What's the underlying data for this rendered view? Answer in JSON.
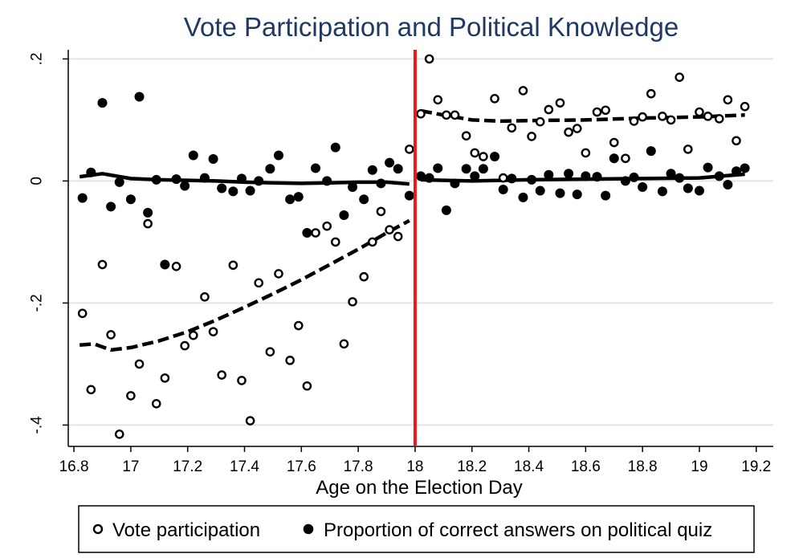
{
  "chart_data": {
    "type": "scatter",
    "title": "Vote Participation and Political Knowledge",
    "xlabel": "Age on the Election Day",
    "ylabel": "",
    "xlim": [
      16.78,
      19.26
    ],
    "ylim": [
      -0.435,
      0.215
    ],
    "grid": true,
    "legend_position": "bottom",
    "cutoff_x": 18,
    "colors": {
      "title": "#1f3864",
      "cutoff": "#e8191c",
      "grid": "#dce8ec",
      "marker": "#000000"
    },
    "x_ticks": [
      {
        "value": 16.8,
        "label": "16.8"
      },
      {
        "value": 17,
        "label": "17"
      },
      {
        "value": 17.2,
        "label": "17.2"
      },
      {
        "value": 17.4,
        "label": "17.4"
      },
      {
        "value": 17.6,
        "label": "17.6"
      },
      {
        "value": 17.8,
        "label": "17.8"
      },
      {
        "value": 18,
        "label": "18"
      },
      {
        "value": 18.2,
        "label": "18.2"
      },
      {
        "value": 18.4,
        "label": "18.4"
      },
      {
        "value": 18.6,
        "label": "18.6"
      },
      {
        "value": 18.8,
        "label": "18.8"
      },
      {
        "value": 19,
        "label": "19"
      },
      {
        "value": 19.2,
        "label": "19.2"
      }
    ],
    "y_ticks": [
      {
        "value": 0.2,
        "label": ".2"
      },
      {
        "value": 0,
        "label": "0"
      },
      {
        "value": -0.2,
        "label": "-.2"
      },
      {
        "value": -0.4,
        "label": "-.4"
      }
    ],
    "series": [
      {
        "name": "Vote participation",
        "marker": "hollow-circle",
        "points": [
          [
            16.83,
            -0.217
          ],
          [
            16.86,
            -0.342
          ],
          [
            16.9,
            -0.137
          ],
          [
            16.93,
            -0.252
          ],
          [
            16.96,
            -0.415
          ],
          [
            17.0,
            -0.352
          ],
          [
            17.03,
            -0.3
          ],
          [
            17.06,
            -0.07
          ],
          [
            17.09,
            -0.365
          ],
          [
            17.12,
            -0.323
          ],
          [
            17.16,
            -0.14
          ],
          [
            17.19,
            -0.27
          ],
          [
            17.22,
            -0.253
          ],
          [
            17.26,
            -0.19
          ],
          [
            17.29,
            -0.247
          ],
          [
            17.32,
            -0.318
          ],
          [
            17.36,
            -0.138
          ],
          [
            17.39,
            -0.327
          ],
          [
            17.42,
            -0.393
          ],
          [
            17.45,
            -0.167
          ],
          [
            17.49,
            -0.28
          ],
          [
            17.52,
            -0.152
          ],
          [
            17.56,
            -0.294
          ],
          [
            17.59,
            -0.237
          ],
          [
            17.62,
            -0.336
          ],
          [
            17.65,
            -0.085
          ],
          [
            17.69,
            -0.074
          ],
          [
            17.72,
            -0.1
          ],
          [
            17.75,
            -0.267
          ],
          [
            17.78,
            -0.198
          ],
          [
            17.82,
            -0.157
          ],
          [
            17.85,
            -0.1
          ],
          [
            17.88,
            -0.05
          ],
          [
            17.91,
            -0.08
          ],
          [
            17.94,
            -0.091
          ],
          [
            17.98,
            0.052
          ],
          [
            18.02,
            0.11
          ],
          [
            18.05,
            0.2
          ],
          [
            18.08,
            0.133
          ],
          [
            18.11,
            0.108
          ],
          [
            18.14,
            0.108
          ],
          [
            18.18,
            0.074
          ],
          [
            18.21,
            0.046
          ],
          [
            18.24,
            0.04
          ],
          [
            18.28,
            0.135
          ],
          [
            18.31,
            0.005
          ],
          [
            18.34,
            0.087
          ],
          [
            18.38,
            0.148
          ],
          [
            18.41,
            0.073
          ],
          [
            18.44,
            0.097
          ],
          [
            18.47,
            0.117
          ],
          [
            18.51,
            0.128
          ],
          [
            18.54,
            0.08
          ],
          [
            18.57,
            0.086
          ],
          [
            18.6,
            0.046
          ],
          [
            18.64,
            0.113
          ],
          [
            18.67,
            0.116
          ],
          [
            18.7,
            0.063
          ],
          [
            18.74,
            0.037
          ],
          [
            18.77,
            0.098
          ],
          [
            18.8,
            0.105
          ],
          [
            18.83,
            0.143
          ],
          [
            18.87,
            0.106
          ],
          [
            18.9,
            0.1
          ],
          [
            18.93,
            0.17
          ],
          [
            18.96,
            0.052
          ],
          [
            19.0,
            0.113
          ],
          [
            19.03,
            0.106
          ],
          [
            19.07,
            0.102
          ],
          [
            19.1,
            0.133
          ],
          [
            19.13,
            0.066
          ],
          [
            19.16,
            0.122
          ]
        ],
        "fit_left": [
          [
            16.82,
            -0.269
          ],
          [
            16.87,
            -0.267
          ],
          [
            16.93,
            -0.277
          ],
          [
            17.0,
            -0.273
          ],
          [
            17.1,
            -0.262
          ],
          [
            17.2,
            -0.247
          ],
          [
            17.3,
            -0.228
          ],
          [
            17.4,
            -0.207
          ],
          [
            17.5,
            -0.185
          ],
          [
            17.6,
            -0.162
          ],
          [
            17.7,
            -0.137
          ],
          [
            17.8,
            -0.112
          ],
          [
            17.9,
            -0.085
          ],
          [
            17.98,
            -0.065
          ]
        ],
        "fit_right": [
          [
            18.02,
            0.115
          ],
          [
            18.1,
            0.108
          ],
          [
            18.2,
            0.1
          ],
          [
            18.3,
            0.098
          ],
          [
            18.4,
            0.099
          ],
          [
            18.6,
            0.1
          ],
          [
            18.8,
            0.103
          ],
          [
            19.0,
            0.105
          ],
          [
            19.16,
            0.108
          ]
        ]
      },
      {
        "name": "Proportion of correct answers on political quiz",
        "marker": "filled-circle",
        "points": [
          [
            16.83,
            -0.028
          ],
          [
            16.86,
            0.014
          ],
          [
            16.9,
            0.128
          ],
          [
            16.93,
            -0.042
          ],
          [
            16.96,
            -0.002
          ],
          [
            17.0,
            -0.03
          ],
          [
            17.03,
            0.138
          ],
          [
            17.06,
            -0.052
          ],
          [
            17.09,
            0.002
          ],
          [
            17.12,
            -0.137
          ],
          [
            17.16,
            0.003
          ],
          [
            17.19,
            -0.008
          ],
          [
            17.22,
            0.042
          ],
          [
            17.26,
            0.005
          ],
          [
            17.29,
            0.036
          ],
          [
            17.32,
            -0.012
          ],
          [
            17.36,
            -0.017
          ],
          [
            17.39,
            0.004
          ],
          [
            17.42,
            -0.016
          ],
          [
            17.45,
            0.0
          ],
          [
            17.49,
            0.02
          ],
          [
            17.52,
            0.042
          ],
          [
            17.56,
            -0.03
          ],
          [
            17.59,
            -0.026
          ],
          [
            17.62,
            -0.085
          ],
          [
            17.65,
            0.021
          ],
          [
            17.69,
            0.0
          ],
          [
            17.72,
            0.055
          ],
          [
            17.75,
            -0.056
          ],
          [
            17.78,
            -0.01
          ],
          [
            17.82,
            -0.03
          ],
          [
            17.85,
            0.018
          ],
          [
            17.88,
            -0.004
          ],
          [
            17.91,
            0.03
          ],
          [
            17.94,
            0.02
          ],
          [
            17.98,
            -0.024
          ],
          [
            18.02,
            0.008
          ],
          [
            18.05,
            0.005
          ],
          [
            18.08,
            0.021
          ],
          [
            18.11,
            -0.048
          ],
          [
            18.14,
            -0.004
          ],
          [
            18.18,
            0.02
          ],
          [
            18.21,
            0.008
          ],
          [
            18.24,
            0.02
          ],
          [
            18.28,
            0.04
          ],
          [
            18.31,
            -0.014
          ],
          [
            18.34,
            0.004
          ],
          [
            18.38,
            -0.027
          ],
          [
            18.41,
            0.002
          ],
          [
            18.44,
            -0.016
          ],
          [
            18.47,
            0.01
          ],
          [
            18.51,
            -0.02
          ],
          [
            18.54,
            0.012
          ],
          [
            18.57,
            -0.022
          ],
          [
            18.6,
            0.008
          ],
          [
            18.64,
            0.007
          ],
          [
            18.67,
            -0.024
          ],
          [
            18.7,
            0.037
          ],
          [
            18.74,
            0.0
          ],
          [
            18.77,
            0.006
          ],
          [
            18.8,
            -0.01
          ],
          [
            18.83,
            0.049
          ],
          [
            18.87,
            -0.017
          ],
          [
            18.9,
            0.012
          ],
          [
            18.93,
            0.005
          ],
          [
            18.96,
            -0.012
          ],
          [
            19.0,
            -0.016
          ],
          [
            19.03,
            0.022
          ],
          [
            19.07,
            0.008
          ],
          [
            19.1,
            -0.006
          ],
          [
            19.13,
            0.016
          ],
          [
            19.16,
            0.021
          ]
        ],
        "fit_left": [
          [
            16.82,
            0.007
          ],
          [
            16.9,
            0.012
          ],
          [
            17.0,
            0.004
          ],
          [
            17.1,
            0.002
          ],
          [
            17.2,
            0.001
          ],
          [
            17.3,
            0.0
          ],
          [
            17.4,
            -0.002
          ],
          [
            17.5,
            -0.003
          ],
          [
            17.6,
            -0.004
          ],
          [
            17.7,
            -0.003
          ],
          [
            17.8,
            -0.002
          ],
          [
            17.9,
            -0.002
          ],
          [
            17.98,
            -0.005
          ]
        ],
        "fit_right": [
          [
            18.02,
            0.002
          ],
          [
            18.1,
            0.001
          ],
          [
            18.2,
            0.0
          ],
          [
            18.4,
            0.002
          ],
          [
            18.6,
            0.003
          ],
          [
            18.8,
            0.004
          ],
          [
            19.0,
            0.005
          ],
          [
            19.08,
            0.008
          ],
          [
            19.16,
            0.011
          ]
        ]
      }
    ]
  }
}
